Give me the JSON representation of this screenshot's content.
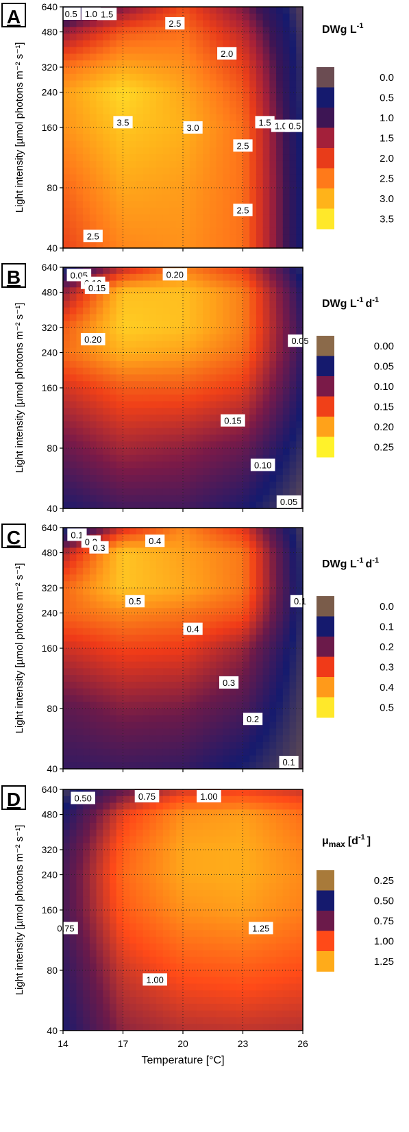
{
  "colors": {
    "panel_A": [
      "#6b4c52",
      "#151a6e",
      "#3d1554",
      "#a3203a",
      "#e83c1a",
      "#ff7a1a",
      "#ffb31a",
      "#ffe82a"
    ],
    "panel_B": [
      "#8b6a4a",
      "#151a6e",
      "#7a1a48",
      "#f04018",
      "#ffa21a",
      "#fff22a"
    ],
    "panel_C": [
      "#7a5c4a",
      "#151a6e",
      "#6b1a4a",
      "#f03a18",
      "#ff9a1a",
      "#ffe82a"
    ],
    "panel_D": [
      "#a87a3a",
      "#151a6e",
      "#6b1a4a",
      "#ff4a18",
      "#ffab1a"
    ]
  },
  "chart_data": [
    {
      "type": "heatmap",
      "panel": "A",
      "legend_title": "DWg L",
      "legend_unit_sup": "-1",
      "legend_unit_rest": "",
      "legend_title_sub": "",
      "legend_bracket": "",
      "xlabel": "",
      "ylabel": "Light intensity [µmol photons m⁻² s⁻¹]",
      "x": [
        14,
        17,
        20,
        23,
        26
      ],
      "y": [
        40,
        80,
        160,
        240,
        320,
        480,
        640
      ],
      "y_tick_labels": [
        "40",
        "80",
        "160",
        "240",
        "320",
        "480",
        "640"
      ],
      "legend": [
        "0.0",
        "0.5",
        "1.0",
        "1.5",
        "2.0",
        "2.5",
        "3.0",
        "3.5"
      ],
      "z": [
        [
          2.2,
          2.8,
          2.9,
          2.6,
          0.5
        ],
        [
          2.5,
          3.1,
          3.0,
          2.6,
          0.5
        ],
        [
          2.9,
          3.4,
          3.2,
          2.6,
          0.4
        ],
        [
          3.0,
          3.6,
          3.1,
          2.4,
          0.3
        ],
        [
          2.6,
          3.1,
          2.9,
          2.2,
          0.3
        ],
        [
          1.5,
          2.4,
          2.6,
          1.8,
          0.2
        ],
        [
          0.4,
          1.4,
          2.3,
          1.4,
          0.1
        ]
      ],
      "contour_labels": [
        {
          "text": "0.5",
          "x": 14.4,
          "y": 640
        },
        {
          "text": "1.0",
          "x": 15.4,
          "y": 610
        },
        {
          "text": "1.5",
          "x": 16.2,
          "y": 590
        },
        {
          "text": "2.5",
          "x": 19.6,
          "y": 530
        },
        {
          "text": "2.0",
          "x": 22.2,
          "y": 375
        },
        {
          "text": "3.5",
          "x": 17.0,
          "y": 170
        },
        {
          "text": "3.0",
          "x": 20.5,
          "y": 160
        },
        {
          "text": "1.5",
          "x": 24.1,
          "y": 170
        },
        {
          "text": "1.0",
          "x": 24.9,
          "y": 163
        },
        {
          "text": "0.5",
          "x": 25.6,
          "y": 163
        },
        {
          "text": "2.5",
          "x": 23.0,
          "y": 130
        },
        {
          "text": "2.5",
          "x": 23.0,
          "y": 62
        },
        {
          "text": "2.5",
          "x": 15.5,
          "y": 46
        }
      ]
    },
    {
      "type": "heatmap",
      "panel": "B",
      "legend_title": "DWg L",
      "legend_unit_sup": "-1",
      "legend_unit_rest": "d",
      "legend_unit_sup2": "-1",
      "legend_title_sub": "",
      "legend_bracket": "",
      "xlabel": "",
      "ylabel": "Light intensity [µmol photons m⁻² s⁻¹]",
      "x": [
        14,
        17,
        20,
        23,
        26
      ],
      "y": [
        40,
        80,
        160,
        240,
        320,
        480,
        640
      ],
      "y_tick_labels": [
        "40",
        "80",
        "160",
        "240",
        "320",
        "480",
        "640"
      ],
      "legend": [
        "0.00",
        "0.05",
        "0.10",
        "0.15",
        "0.20",
        "0.25"
      ],
      "z": [
        [
          0.06,
          0.08,
          0.08,
          0.06,
          0.02
        ],
        [
          0.1,
          0.13,
          0.12,
          0.1,
          0.04
        ],
        [
          0.15,
          0.18,
          0.18,
          0.16,
          0.06
        ],
        [
          0.19,
          0.23,
          0.22,
          0.19,
          0.07
        ],
        [
          0.18,
          0.25,
          0.24,
          0.2,
          0.07
        ],
        [
          0.12,
          0.24,
          0.24,
          0.2,
          0.06
        ],
        [
          0.03,
          0.14,
          0.2,
          0.16,
          0.04
        ]
      ],
      "contour_labels": [
        {
          "text": "0.05",
          "x": 14.8,
          "y": 585
        },
        {
          "text": "0.10",
          "x": 15.5,
          "y": 535
        },
        {
          "text": "0.15",
          "x": 15.7,
          "y": 505
        },
        {
          "text": "0.20",
          "x": 19.6,
          "y": 590
        },
        {
          "text": "0.20",
          "x": 15.5,
          "y": 280
        },
        {
          "text": "0.05",
          "x": 26.0,
          "y": 275
        },
        {
          "text": "0.15",
          "x": 22.5,
          "y": 110
        },
        {
          "text": "0.10",
          "x": 24.0,
          "y": 66
        },
        {
          "text": "0.05",
          "x": 25.3,
          "y": 43
        }
      ]
    },
    {
      "type": "heatmap",
      "panel": "C",
      "legend_title": "DWg L",
      "legend_unit_sup": "-1",
      "legend_unit_rest": "d",
      "legend_unit_sup2": "-1",
      "legend_title_sub": "",
      "legend_bracket": "",
      "xlabel": "",
      "ylabel": "Light intensity [µmol photons m⁻² s⁻¹]",
      "x": [
        14,
        17,
        20,
        23,
        26
      ],
      "y": [
        40,
        80,
        160,
        240,
        320,
        480,
        640
      ],
      "y_tick_labels": [
        "40",
        "80",
        "160",
        "240",
        "320",
        "480",
        "640"
      ],
      "legend": [
        "0.0",
        "0.1",
        "0.2",
        "0.3",
        "0.4",
        "0.5"
      ],
      "z": [
        [
          0.15,
          0.16,
          0.15,
          0.1,
          0.03
        ],
        [
          0.2,
          0.24,
          0.23,
          0.18,
          0.05
        ],
        [
          0.3,
          0.34,
          0.33,
          0.26,
          0.07
        ],
        [
          0.38,
          0.42,
          0.4,
          0.36,
          0.08
        ],
        [
          0.38,
          0.5,
          0.46,
          0.4,
          0.08
        ],
        [
          0.27,
          0.5,
          0.45,
          0.4,
          0.07
        ],
        [
          0.05,
          0.3,
          0.42,
          0.32,
          0.05
        ]
      ],
      "contour_labels": [
        {
          "text": "0.1",
          "x": 14.7,
          "y": 590
        },
        {
          "text": "0.2",
          "x": 15.4,
          "y": 545
        },
        {
          "text": "0.3",
          "x": 15.8,
          "y": 510
        },
        {
          "text": "0.4",
          "x": 18.6,
          "y": 550
        },
        {
          "text": "0.5",
          "x": 17.6,
          "y": 275
        },
        {
          "text": "0.4",
          "x": 20.5,
          "y": 200
        },
        {
          "text": "0.1",
          "x": 26.0,
          "y": 275
        },
        {
          "text": "0.3",
          "x": 22.3,
          "y": 108
        },
        {
          "text": "0.2",
          "x": 23.5,
          "y": 71
        },
        {
          "text": "0.1",
          "x": 25.3,
          "y": 43
        }
      ]
    },
    {
      "type": "heatmap",
      "panel": "D",
      "legend_title": "μ",
      "legend_title_sub": "max",
      "legend_bracket": "[d",
      "legend_unit_sup": "-1",
      "legend_unit_rest": "]",
      "xlabel": "Temperature [°C]",
      "ylabel": "Light intensity [µmol photons m⁻² s⁻¹]",
      "x": [
        14,
        17,
        20,
        23,
        26
      ],
      "y": [
        40,
        80,
        160,
        240,
        320,
        480,
        640
      ],
      "y_tick_labels": [
        "40",
        "80",
        "160",
        "240",
        "320",
        "480",
        "640"
      ],
      "x_tick_labels": [
        "14",
        "17",
        "20",
        "23",
        "26"
      ],
      "legend": [
        "0.25",
        "0.50",
        "0.75",
        "1.00",
        "1.25"
      ],
      "z": [
        [
          0.55,
          0.88,
          0.95,
          0.97,
          0.95
        ],
        [
          0.62,
          1.0,
          1.12,
          1.15,
          1.1
        ],
        [
          0.7,
          1.14,
          1.3,
          1.34,
          1.25
        ],
        [
          0.7,
          1.18,
          1.36,
          1.38,
          1.28
        ],
        [
          0.66,
          1.15,
          1.36,
          1.38,
          1.26
        ],
        [
          0.55,
          1.05,
          1.3,
          1.34,
          1.2
        ],
        [
          0.42,
          0.78,
          1.0,
          1.05,
          0.98
        ]
      ],
      "contour_labels": [
        {
          "text": "0.50",
          "x": 15.0,
          "y": 580
        },
        {
          "text": "0.75",
          "x": 18.2,
          "y": 620
        },
        {
          "text": "1.00",
          "x": 21.3,
          "y": 600
        },
        {
          "text": "0.75",
          "x": 14.1,
          "y": 130
        },
        {
          "text": "1.25",
          "x": 23.9,
          "y": 130
        },
        {
          "text": "1.00",
          "x": 18.6,
          "y": 72
        }
      ]
    }
  ]
}
